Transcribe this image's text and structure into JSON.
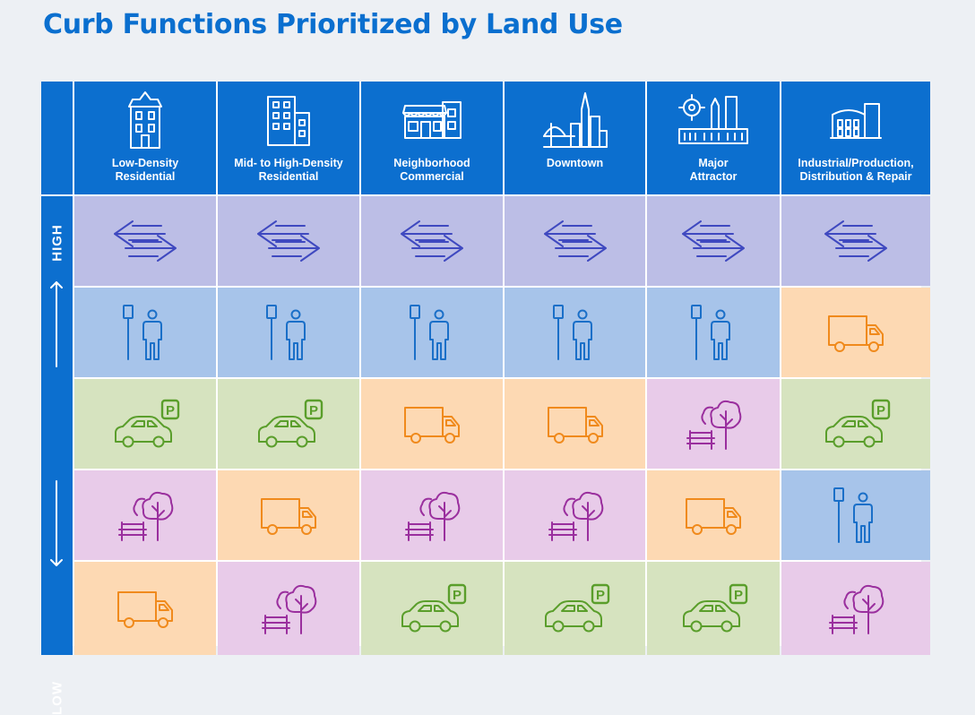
{
  "title": "Curb Functions Prioritized by Land Use",
  "axis": {
    "high": "HIGH",
    "low": "LOW"
  },
  "columns": [
    {
      "label": "Low-Density\nResidential",
      "icon": "house-icon"
    },
    {
      "label": "Mid- to High-Density\nResidential",
      "icon": "apartment-building-icon"
    },
    {
      "label": "Neighborhood\nCommercial",
      "icon": "storefront-icon"
    },
    {
      "label": "Downtown",
      "icon": "city-skyline-icon"
    },
    {
      "label": "Major\nAttractor",
      "icon": "attraction-landmark-icon"
    },
    {
      "label": "Industrial/Production,\nDistribution & Repair",
      "icon": "factory-icon"
    }
  ],
  "functions": {
    "swap": {
      "icon": "mobility-arrows-icon",
      "color": "#bcbee6"
    },
    "pedestrian": {
      "icon": "transit-stop-person-icon",
      "color": "#a7c4ea"
    },
    "freight": {
      "icon": "delivery-truck-icon",
      "color": "#fdd9b3"
    },
    "parking": {
      "icon": "car-parking-icon",
      "color": "#d6e3bf"
    },
    "greening": {
      "icon": "tree-bench-icon",
      "color": "#e8cbe9"
    }
  },
  "priority_rows": [
    [
      "swap",
      "swap",
      "swap",
      "swap",
      "swap",
      "swap"
    ],
    [
      "pedestrian",
      "pedestrian",
      "pedestrian",
      "pedestrian",
      "pedestrian",
      "freight"
    ],
    [
      "parking",
      "parking",
      "freight",
      "freight",
      "greening",
      "parking"
    ],
    [
      "greening",
      "freight",
      "greening",
      "greening",
      "freight",
      "pedestrian"
    ],
    [
      "freight",
      "greening",
      "parking",
      "parking",
      "parking",
      "greening"
    ]
  ],
  "parking_sign": "P"
}
